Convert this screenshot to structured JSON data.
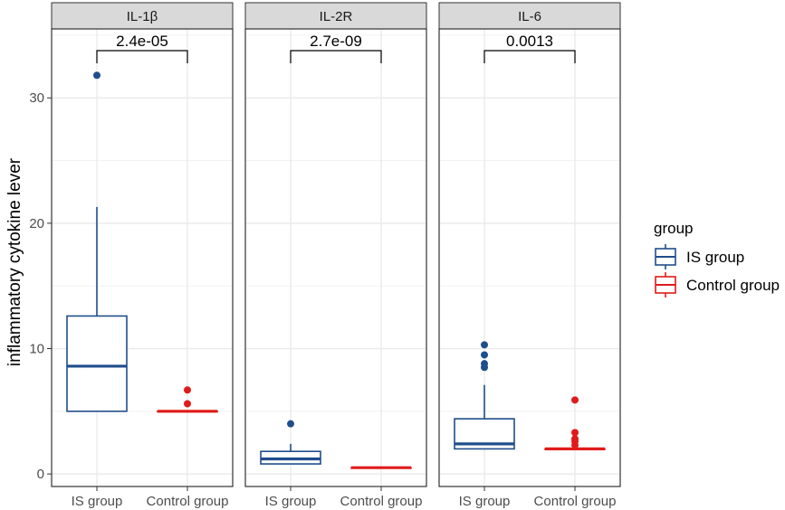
{
  "chart_data": {
    "type": "boxplot",
    "ylabel": "inflammatory cytokine lever",
    "ylim": [
      -1,
      35.5
    ],
    "yticks": [
      0,
      10,
      20,
      30
    ],
    "grid": true,
    "categories": [
      "IS group",
      "Control group"
    ],
    "legend": {
      "title": "group",
      "position": "right",
      "entries": [
        {
          "label": "IS group",
          "color": "#1f4e8c"
        },
        {
          "label": "Control group",
          "color": "#e01b1b"
        }
      ]
    },
    "panels": [
      {
        "title": "IL-1β",
        "pvalue": "2.4e-05",
        "groups": [
          {
            "name": "IS group",
            "color": "#1f4e8c",
            "q1": 5.0,
            "median": 8.6,
            "q3": 12.6,
            "whisker_low": 5.0,
            "whisker_high": 21.3,
            "outliers": [
              31.8
            ]
          },
          {
            "name": "Control group",
            "color": "#e01b1b",
            "q1": 5.0,
            "median": 5.0,
            "q3": 5.0,
            "whisker_low": 5.0,
            "whisker_high": 5.0,
            "outliers": [
              5.6,
              6.7
            ]
          }
        ]
      },
      {
        "title": "IL-2R",
        "pvalue": "2.7e-09",
        "groups": [
          {
            "name": "IS group",
            "color": "#1f4e8c",
            "q1": 0.8,
            "median": 1.2,
            "q3": 1.8,
            "whisker_low": 0.8,
            "whisker_high": 2.4,
            "outliers": [
              4.0
            ]
          },
          {
            "name": "Control group",
            "color": "#e01b1b",
            "q1": 0.5,
            "median": 0.5,
            "q3": 0.5,
            "whisker_low": 0.5,
            "whisker_high": 0.5,
            "outliers": []
          }
        ]
      },
      {
        "title": "IL-6",
        "pvalue": "0.0013",
        "groups": [
          {
            "name": "IS group",
            "color": "#1f4e8c",
            "q1": 2.0,
            "median": 2.4,
            "q3": 4.4,
            "whisker_low": 2.0,
            "whisker_high": 7.1,
            "outliers": [
              8.5,
              8.8,
              9.5,
              10.3
            ]
          },
          {
            "name": "Control group",
            "color": "#e01b1b",
            "q1": 2.0,
            "median": 2.0,
            "q3": 2.0,
            "whisker_low": 2.0,
            "whisker_high": 2.0,
            "outliers": [
              2.3,
              2.6,
              2.8,
              3.3,
              5.9
            ]
          }
        ]
      }
    ]
  }
}
